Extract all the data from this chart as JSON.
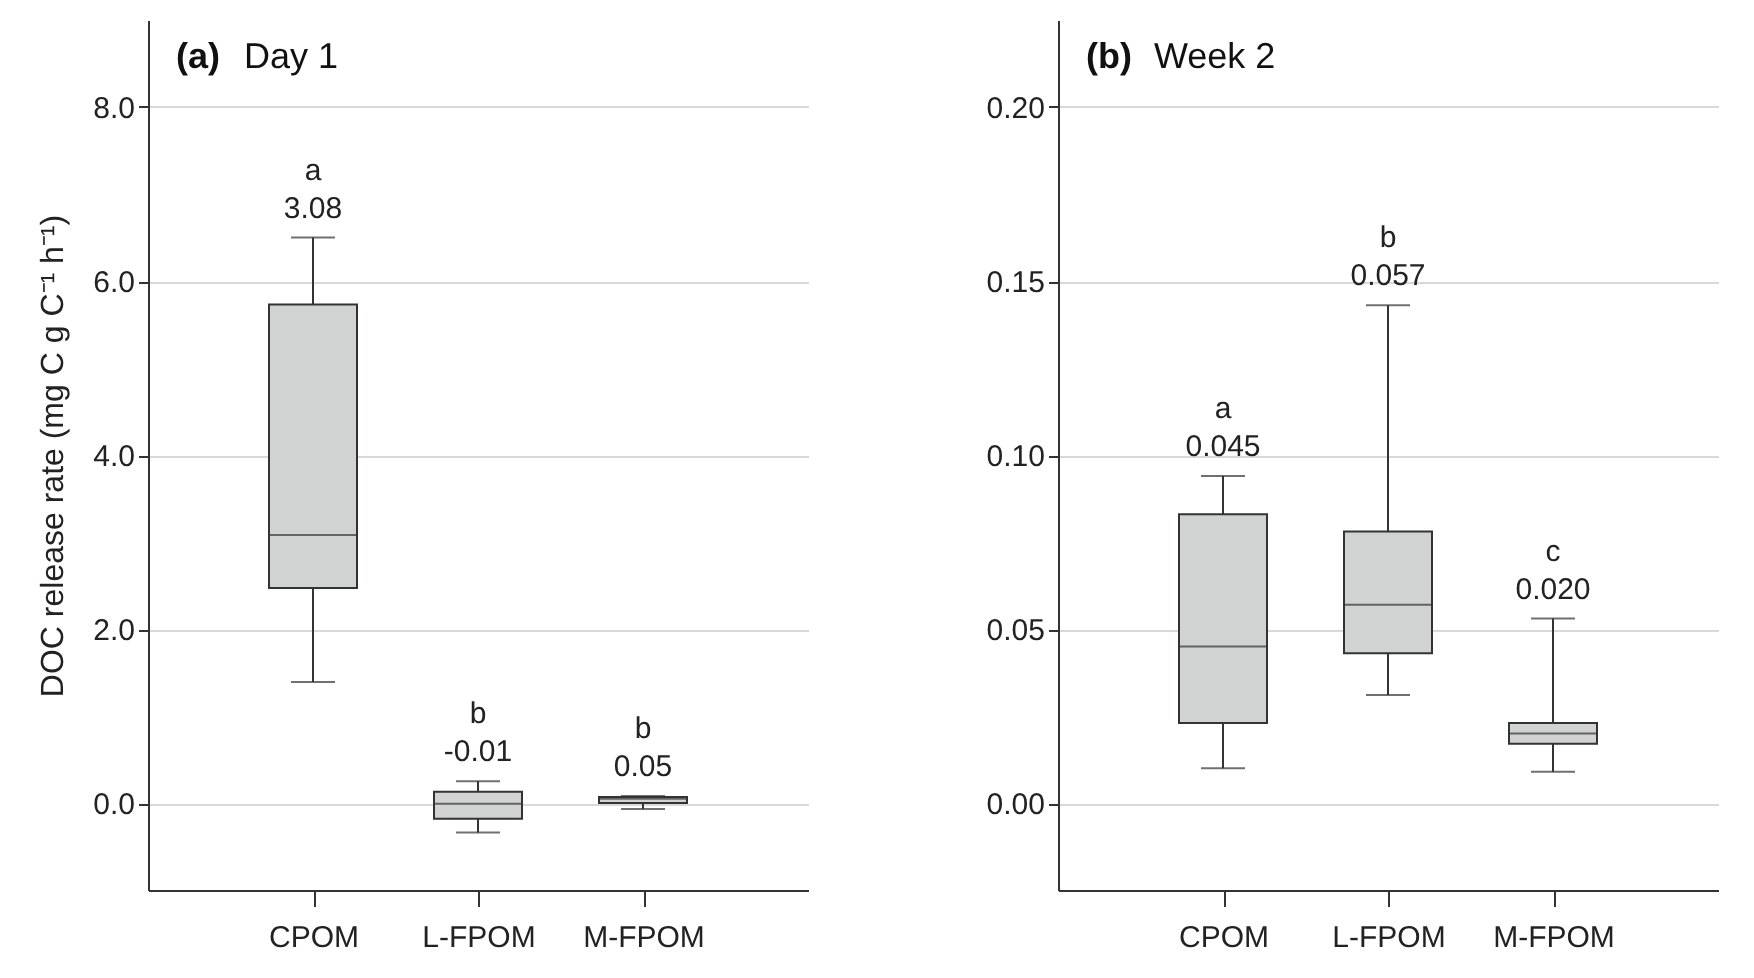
{
  "chart_data": [
    {
      "type": "box",
      "title": "(a) Day 1",
      "ylabel": "DOC release rate (mg C g C⁻¹ h⁻¹)",
      "categories": [
        "CPOM",
        "L-FPOM",
        "M-FPOM"
      ],
      "boxes": [
        {
          "low": 1.39,
          "q1": 2.47,
          "median": 3.08,
          "q3": 5.73,
          "high": 6.5
        },
        {
          "low": -0.34,
          "q1": -0.18,
          "median": -0.01,
          "q3": 0.13,
          "high": 0.25
        },
        {
          "low": -0.07,
          "q1": 0.0,
          "median": 0.05,
          "q3": 0.07,
          "high": 0.08
        }
      ],
      "ylim": [
        -1.0,
        9.0
      ],
      "yticks": [
        {
          "value": 0,
          "label": "0.0"
        },
        {
          "value": 2,
          "label": "2.0"
        },
        {
          "value": 4,
          "label": "4.0"
        },
        {
          "value": 6,
          "label": "6.0"
        },
        {
          "value": 8,
          "label": "8.0"
        }
      ],
      "grid": "y",
      "annotations": [
        {
          "text": "a\n3.08",
          "x": "CPOM",
          "y": 6.5
        },
        {
          "text": "b\n-0.01",
          "x": "L-FPOM",
          "y": 0.25
        },
        {
          "text": "b\n0.05",
          "x": "M-FPOM",
          "y": 0.08
        }
      ]
    },
    {
      "type": "box",
      "title": "(b) Week 2",
      "categories": [
        "CPOM",
        "L-FPOM",
        "M-FPOM"
      ],
      "boxes": [
        {
          "low": 0.01,
          "q1": 0.023,
          "median": 0.045,
          "q3": 0.083,
          "high": 0.094
        },
        {
          "low": 0.031,
          "q1": 0.043,
          "median": 0.057,
          "q3": 0.078,
          "high": 0.143
        },
        {
          "low": 0.009,
          "q1": 0.017,
          "median": 0.02,
          "q3": 0.023,
          "high": 0.053
        }
      ],
      "ylim": [
        -0.025,
        0.225
      ],
      "yticks": [
        {
          "value": 0,
          "label": "0.00"
        },
        {
          "value": 0.05,
          "label": "0.05"
        },
        {
          "value": 0.1,
          "label": "0.10"
        },
        {
          "value": 0.15,
          "label": "0.15"
        },
        {
          "value": 0.2,
          "label": "0.20"
        }
      ],
      "grid": "y",
      "annotations": [
        {
          "text": "a\n0.045",
          "x": "CPOM",
          "y": 0.094
        },
        {
          "text": "b\n0.057",
          "x": "L-FPOM",
          "y": 0.143
        },
        {
          "text": "c\n0.020",
          "x": "M-FPOM",
          "y": 0.053
        }
      ]
    }
  ]
}
